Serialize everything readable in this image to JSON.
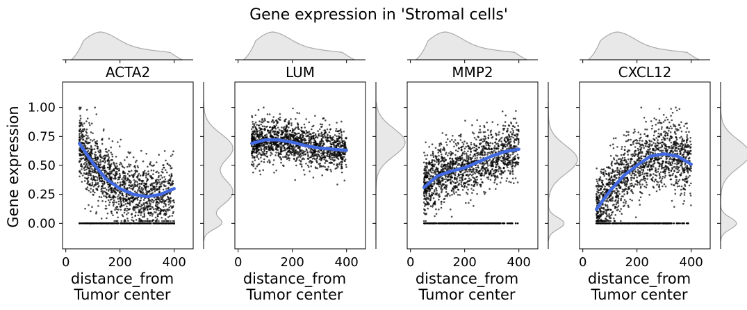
{
  "figure": {
    "title": "Gene expression in 'Stromal cells'",
    "ylabel": "Gene expression",
    "xlabel_line1": "distance_from",
    "xlabel_line2": "Tumor center"
  },
  "chart_data": [
    {
      "type": "scatter",
      "title": "ACTA2",
      "xlabel": "distance_from Tumor center",
      "ylabel": "Gene expression",
      "xlim": [
        -12,
        470
      ],
      "ylim": [
        -0.22,
        1.22
      ],
      "xticks": [
        0,
        200,
        400
      ],
      "yticks": [
        0.0,
        0.25,
        0.5,
        0.75,
        1.0
      ],
      "ytick_labels": [
        "0.00",
        "0.25",
        "0.50",
        "0.75",
        "1.00"
      ],
      "x_range": [
        50,
        400
      ],
      "zero_band_x": [
        50,
        400
      ],
      "trend": {
        "x": [
          50,
          100,
          150,
          200,
          250,
          300,
          350,
          400
        ],
        "y": [
          0.69,
          0.52,
          0.38,
          0.3,
          0.25,
          0.23,
          0.25,
          0.3
        ]
      },
      "spread": 0.14,
      "top_marginal": {
        "label": "distance density",
        "peak_x": 130
      },
      "right_marginal": {
        "label": "expression density",
        "peaks_y": [
          0.0,
          0.27,
          0.65
        ]
      }
    },
    {
      "type": "scatter",
      "title": "LUM",
      "xlabel": "distance_from Tumor center",
      "ylabel": "Gene expression",
      "xlim": [
        -12,
        470
      ],
      "ylim": [
        -0.22,
        1.22
      ],
      "xticks": [
        0,
        200,
        400
      ],
      "yticks": [
        0.0,
        0.25,
        0.5,
        0.75,
        1.0
      ],
      "ytick_labels": [
        "0.00",
        "0.25",
        "0.50",
        "0.75",
        "1.00"
      ],
      "x_range": [
        50,
        400
      ],
      "zero_band_x": [],
      "trend": {
        "x": [
          50,
          100,
          150,
          200,
          250,
          300,
          350,
          400
        ],
        "y": [
          0.69,
          0.72,
          0.72,
          0.7,
          0.67,
          0.65,
          0.64,
          0.63
        ]
      },
      "spread": 0.09,
      "top_marginal": {
        "label": "distance density",
        "peak_x": 130
      },
      "right_marginal": {
        "label": "expression density",
        "peaks_y": [
          0.7
        ]
      }
    },
    {
      "type": "scatter",
      "title": "MMP2",
      "xlabel": "distance_from Tumor center",
      "ylabel": "Gene expression",
      "xlim": [
        -12,
        470
      ],
      "ylim": [
        -0.22,
        1.22
      ],
      "xticks": [
        0,
        200,
        400
      ],
      "yticks": [
        0.0,
        0.25,
        0.5,
        0.75,
        1.0
      ],
      "ytick_labels": [
        "0.00",
        "0.25",
        "0.50",
        "0.75",
        "1.00"
      ],
      "x_range": [
        50,
        400
      ],
      "zero_band_x": [
        50,
        330
      ],
      "trend": {
        "x": [
          50,
          100,
          150,
          200,
          250,
          300,
          350,
          400
        ],
        "y": [
          0.31,
          0.41,
          0.45,
          0.48,
          0.53,
          0.58,
          0.62,
          0.64
        ]
      },
      "spread": 0.13,
      "top_marginal": {
        "label": "distance density",
        "peak_x": 130
      },
      "right_marginal": {
        "label": "expression density",
        "peaks_y": [
          0.0,
          0.55
        ]
      }
    },
    {
      "type": "scatter",
      "title": "CXCL12",
      "xlabel": "distance_from Tumor center",
      "ylabel": "Gene expression",
      "xlim": [
        -12,
        470
      ],
      "ylim": [
        -0.22,
        1.22
      ],
      "xticks": [
        0,
        200,
        400
      ],
      "yticks": [
        0.0,
        0.25,
        0.5,
        0.75,
        1.0
      ],
      "ytick_labels": [
        "0.00",
        "0.25",
        "0.50",
        "0.75",
        "1.00"
      ],
      "x_range": [
        50,
        400
      ],
      "zero_band_x": [
        50,
        330
      ],
      "trend": {
        "x": [
          50,
          100,
          150,
          200,
          250,
          300,
          350,
          400
        ],
        "y": [
          0.12,
          0.28,
          0.41,
          0.5,
          0.58,
          0.6,
          0.58,
          0.51
        ]
      },
      "spread": 0.15,
      "top_marginal": {
        "label": "distance density",
        "peak_x": 130
      },
      "right_marginal": {
        "label": "expression density",
        "peaks_y": [
          0.0,
          0.6
        ]
      }
    }
  ],
  "colors": {
    "points": "#000000",
    "trend": "#4169e1",
    "density_fill": "#e8e8e8",
    "density_line": "#a9a9a9",
    "axis": "#000000"
  }
}
